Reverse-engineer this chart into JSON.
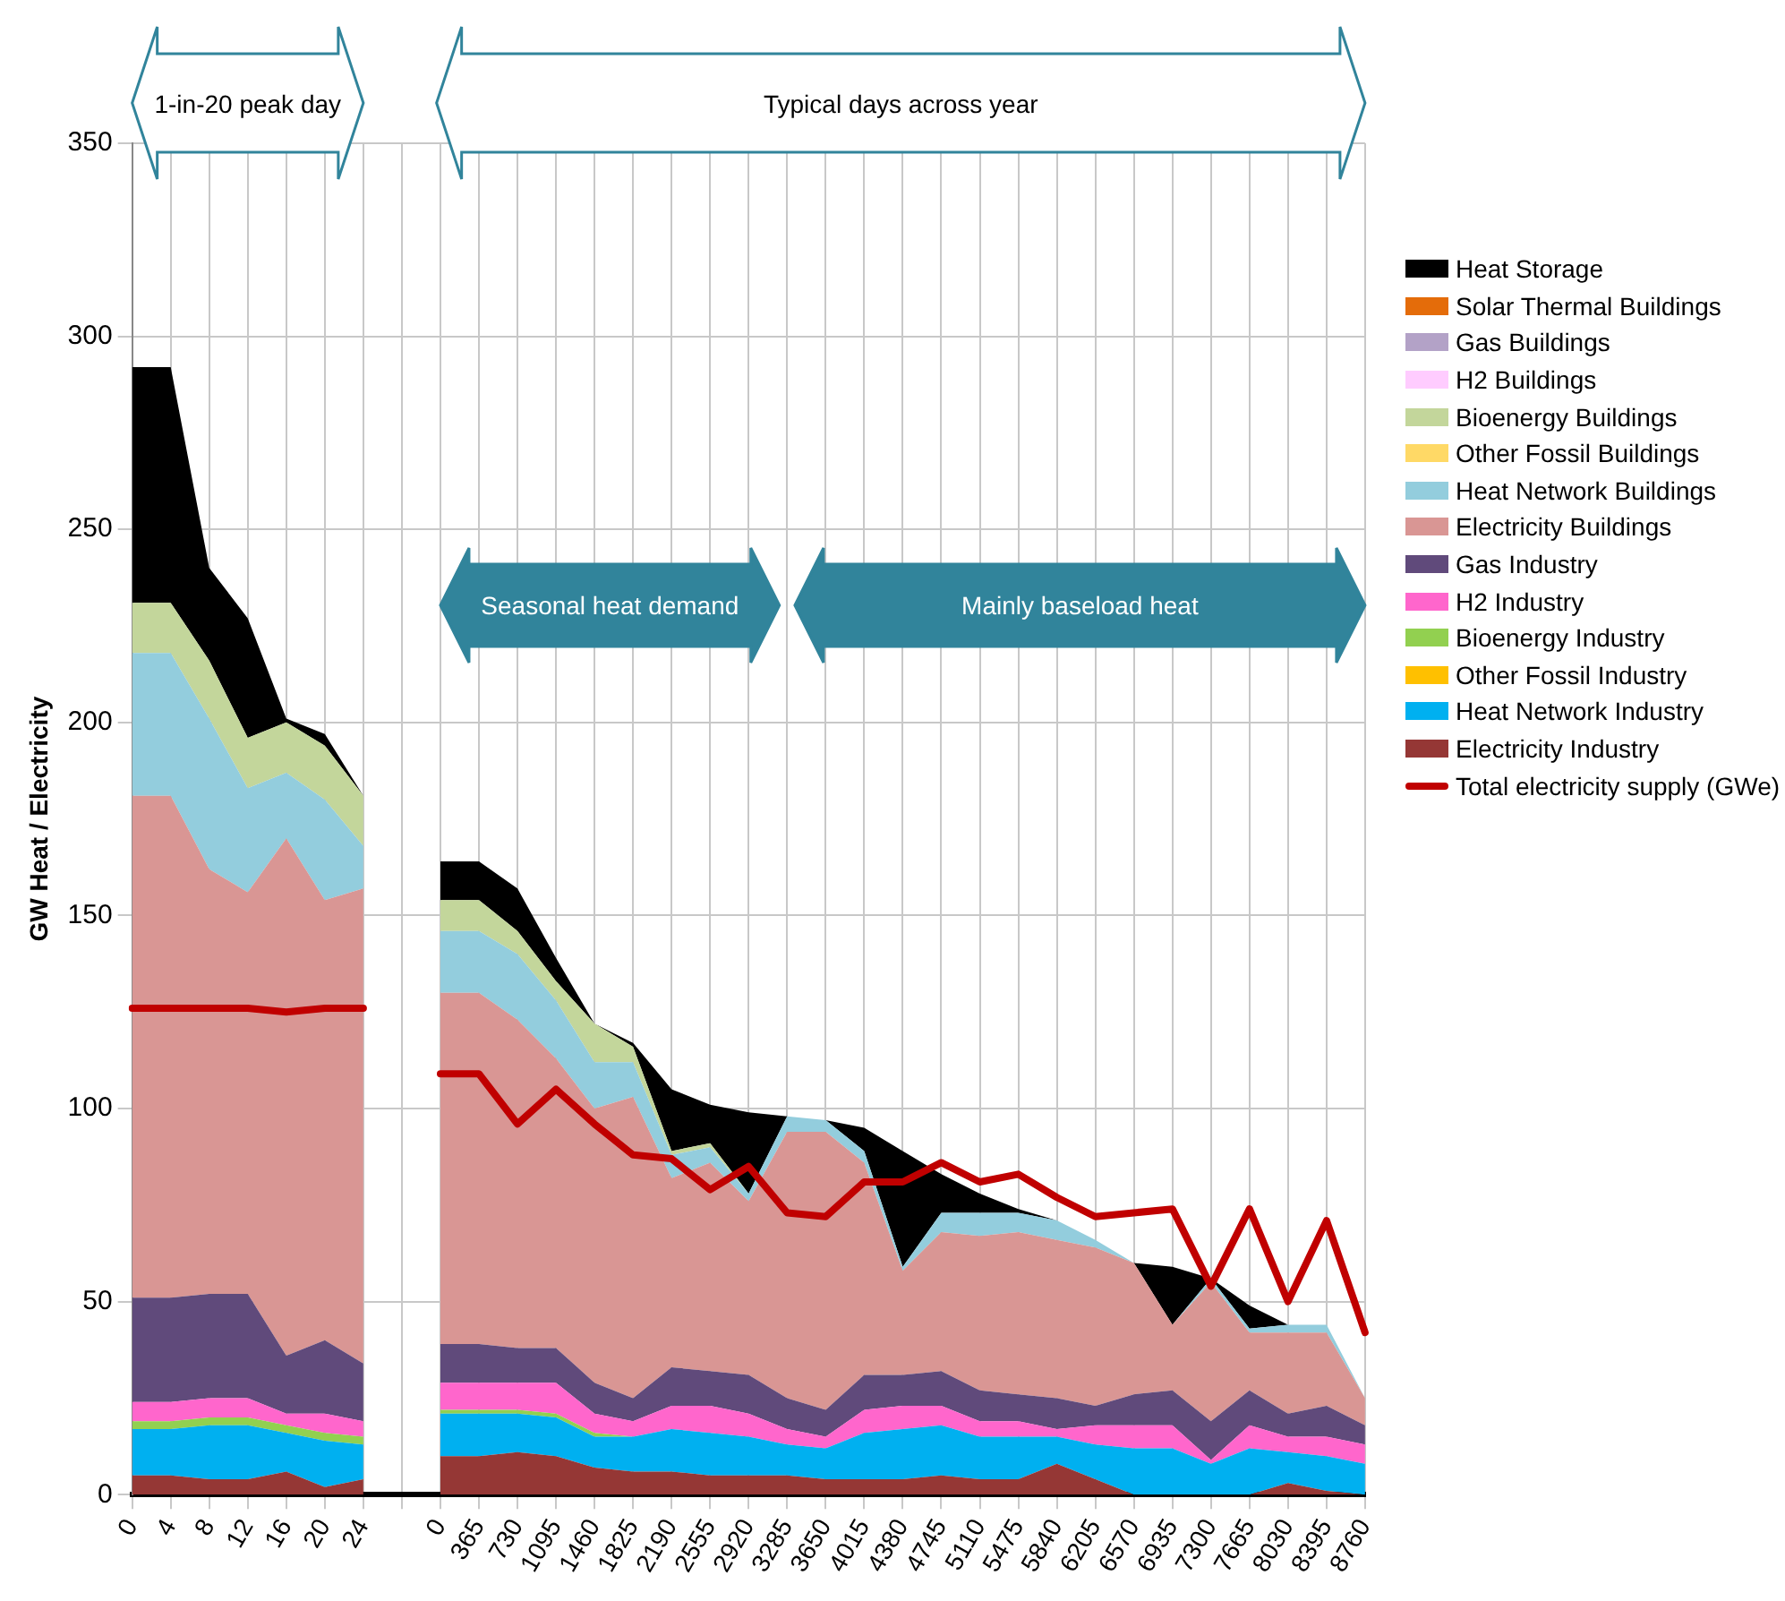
{
  "chart_data": {
    "type": "area",
    "ylabel": "GW Heat / Electricity",
    "stacked": true,
    "grid": true,
    "legend": "right",
    "line_style": "solid",
    "categories": [
      "0",
      "4",
      "8",
      "12",
      "16",
      "20",
      "24",
      null,
      "0",
      "365",
      "730",
      "1095",
      "1460",
      "1825",
      "2190",
      "2555",
      "2920",
      "3285",
      "3650",
      "4015",
      "4380",
      "4745",
      "5110",
      "5475",
      "5840",
      "6205",
      "6570",
      "6935",
      "7300",
      "7665",
      "8030",
      "8395",
      "8760"
    ],
    "ylim": [
      0,
      350
    ],
    "yticks": [
      0,
      50,
      100,
      150,
      200,
      250,
      300,
      350
    ],
    "annotations": [
      "1-in-20 peak day",
      "Typical days across year",
      "Seasonal heat demand",
      "Mainly baseload heat"
    ],
    "series": [
      {
        "name": "Electricity Industry",
        "color": "#953735",
        "values": [
          5,
          5,
          4,
          4,
          6,
          2,
          4,
          null,
          10,
          10,
          11,
          10,
          7,
          6,
          6,
          5,
          5,
          5,
          4,
          4,
          4,
          5,
          4,
          4,
          8,
          4,
          0,
          0,
          0,
          0,
          3,
          1,
          0
        ]
      },
      {
        "name": "Heat Network Industry",
        "color": "#00b0f0",
        "values": [
          12,
          12,
          14,
          14,
          10,
          12,
          9,
          null,
          11,
          11,
          10,
          10,
          8,
          9,
          11,
          11,
          10,
          8,
          8,
          12,
          13,
          13,
          11,
          11,
          7,
          9,
          12,
          12,
          8,
          12,
          8,
          9,
          8
        ]
      },
      {
        "name": "Other Fossil Industry",
        "color": "#ffc000",
        "values": [
          null,
          null,
          null,
          null,
          null,
          null,
          null,
          null,
          null,
          null,
          null,
          null,
          null,
          null,
          null,
          null,
          null,
          null,
          null,
          null,
          null,
          null,
          null,
          null,
          null,
          null,
          null,
          null,
          null,
          null,
          null,
          null,
          null
        ]
      },
      {
        "name": "Bioenergy Industry",
        "color": "#92d050",
        "values": [
          2,
          2,
          2,
          2,
          2,
          2,
          2,
          null,
          1,
          1,
          1,
          1,
          1,
          0,
          0,
          0,
          0,
          0,
          0,
          0,
          0,
          0,
          0,
          0,
          0,
          0,
          0,
          0,
          0,
          0,
          0,
          0,
          0
        ]
      },
      {
        "name": "H2 Industry",
        "color": "#ff66cc",
        "values": [
          5,
          5,
          5,
          5,
          3,
          5,
          4,
          null,
          7,
          7,
          7,
          8,
          5,
          4,
          6,
          7,
          6,
          4,
          3,
          6,
          6,
          5,
          4,
          4,
          2,
          5,
          6,
          6,
          1,
          6,
          4,
          5,
          5
        ]
      },
      {
        "name": "Gas Industry",
        "color": "#604a7b",
        "values": [
          27,
          27,
          27,
          27,
          15,
          19,
          15,
          null,
          10,
          10,
          9,
          9,
          8,
          6,
          10,
          9,
          10,
          8,
          7,
          9,
          8,
          9,
          8,
          7,
          8,
          5,
          8,
          9,
          10,
          9,
          6,
          8,
          5
        ]
      },
      {
        "name": "Electricity Buildings",
        "color": "#d99694",
        "values": [
          130,
          130,
          110,
          104,
          134,
          114,
          123,
          null,
          91,
          91,
          85,
          75,
          71,
          78,
          49,
          54,
          45,
          69,
          72,
          55,
          27,
          36,
          40,
          42,
          41,
          41,
          34,
          17,
          36,
          15,
          21,
          19,
          7
        ]
      },
      {
        "name": "Heat Network Buildings",
        "color": "#93cddd",
        "values": [
          37,
          37,
          39,
          27,
          17,
          26,
          11,
          null,
          16,
          16,
          17,
          15,
          12,
          9,
          6,
          4,
          2,
          4,
          3,
          3,
          1,
          5,
          6,
          5,
          5,
          2,
          0,
          0,
          1,
          1,
          2,
          2,
          0
        ]
      },
      {
        "name": "Other Fossil Buildings",
        "color": "#ffd966",
        "values": [
          null,
          null,
          null,
          null,
          null,
          null,
          null,
          null,
          null,
          null,
          null,
          null,
          null,
          null,
          null,
          null,
          null,
          null,
          null,
          null,
          null,
          null,
          null,
          null,
          null,
          null,
          null,
          null,
          null,
          null,
          null,
          null,
          null
        ]
      },
      {
        "name": "Bioenergy Buildings",
        "color": "#c3d69b",
        "values": [
          13,
          13,
          15,
          13,
          13,
          14,
          13,
          null,
          8,
          8,
          6,
          5,
          10,
          4,
          1,
          1,
          0,
          0,
          0,
          0,
          0,
          0,
          0,
          0,
          0,
          0,
          0,
          0,
          0,
          0,
          0,
          0,
          0
        ]
      },
      {
        "name": "H2 Buildings",
        "color": "#ffccff",
        "values": [
          null,
          null,
          null,
          null,
          null,
          null,
          null,
          null,
          null,
          null,
          null,
          null,
          null,
          null,
          null,
          null,
          null,
          null,
          null,
          null,
          null,
          null,
          null,
          null,
          null,
          null,
          null,
          null,
          null,
          null,
          null,
          null,
          null
        ]
      },
      {
        "name": "Gas Buildings",
        "color": "#b3a2c7",
        "values": [
          null,
          null,
          null,
          null,
          null,
          null,
          null,
          null,
          null,
          null,
          null,
          null,
          null,
          null,
          null,
          null,
          null,
          null,
          null,
          null,
          null,
          null,
          null,
          null,
          null,
          null,
          null,
          null,
          null,
          null,
          null,
          null,
          null
        ]
      },
      {
        "name": "Solar Thermal Buildings",
        "color": "#e46c0a",
        "values": [
          null,
          null,
          null,
          null,
          null,
          null,
          null,
          null,
          null,
          null,
          null,
          null,
          null,
          null,
          null,
          null,
          null,
          null,
          null,
          null,
          null,
          null,
          null,
          null,
          null,
          null,
          null,
          null,
          null,
          null,
          null,
          null,
          null
        ]
      },
      {
        "name": "Heat Storage",
        "color": "#000000",
        "values": [
          61,
          61,
          24,
          31,
          1,
          3,
          0,
          null,
          10,
          10,
          11,
          6,
          0,
          1,
          16,
          10,
          21,
          0,
          0,
          6,
          30,
          10,
          5,
          1,
          0,
          0,
          0,
          15,
          0,
          6,
          0,
          0,
          0
        ]
      },
      {
        "name": "Total electricity supply (GWe)",
        "type": "line",
        "color": "#c00000",
        "values": [
          126,
          126,
          126,
          126,
          125,
          126,
          126,
          null,
          109,
          109,
          96,
          105,
          96,
          88,
          87,
          79,
          85,
          73,
          72,
          81,
          81,
          86,
          81,
          83,
          77,
          72,
          73,
          74,
          54,
          74,
          50,
          71,
          42
        ]
      }
    ]
  }
}
